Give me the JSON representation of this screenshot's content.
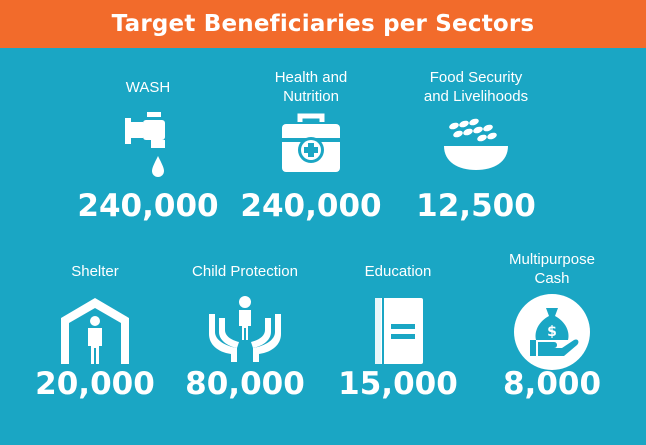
{
  "title": "Target Beneficiaries per Sectors",
  "colors": {
    "background": "#1aa6c4",
    "header": "#f26b2b",
    "text": "#ffffff"
  },
  "sectors": [
    {
      "label": "WASH",
      "value": "240,000",
      "icon": "water-tap-icon"
    },
    {
      "label": "Health and\nNutrition",
      "value": "240,000",
      "icon": "medical-kit-icon"
    },
    {
      "label": "Food Security\nand Livelihoods",
      "value": "12,500",
      "icon": "grain-bowl-icon"
    },
    {
      "label": "Shelter",
      "value": "20,000",
      "icon": "shelter-icon"
    },
    {
      "label": "Child Protection",
      "value": "80,000",
      "icon": "child-protection-icon"
    },
    {
      "label": "Education",
      "value": "15,000",
      "icon": "book-icon"
    },
    {
      "label": "Multipurpose\nCash",
      "value": "8,000",
      "icon": "cash-bag-icon"
    }
  ]
}
